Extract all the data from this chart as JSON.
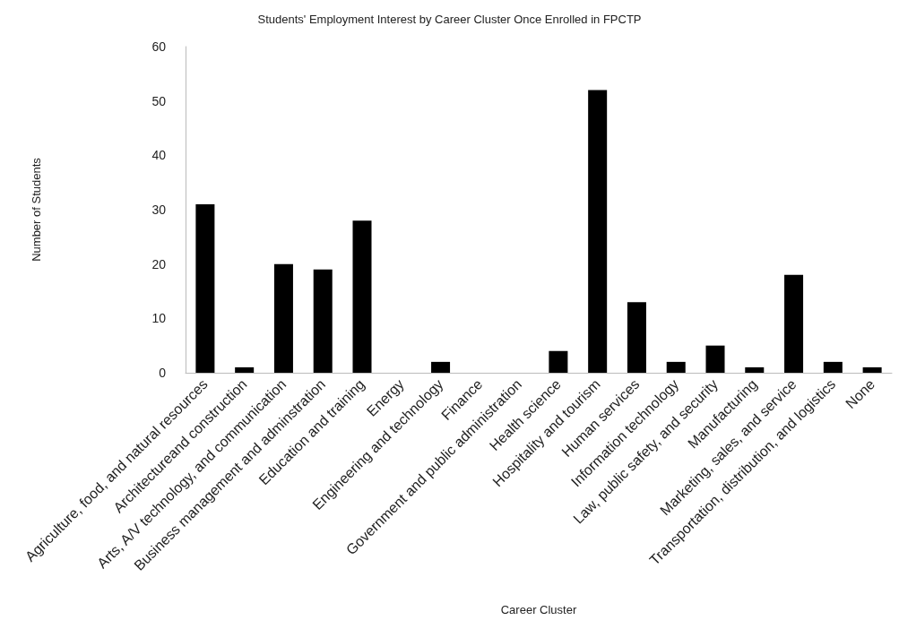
{
  "chart_data": {
    "type": "bar",
    "title": "Students' Employment Interest by Career Cluster Once Enrolled in FPCTP",
    "xlabel": "Career Cluster",
    "ylabel": "Number of Students",
    "categories": [
      "Agriculture, food, and natural resources",
      "Architectureand construction",
      "Arts, A/V technology, and communication",
      "Business management and adminstration",
      "Education and training",
      "Energy",
      "Engineering and technology",
      "Finance",
      "Government and public administration",
      "Health science",
      "Hospitality and tourism",
      "Human services",
      "Information technology",
      "Law, public safety, and security",
      "Manufacturing",
      "Marketing, sales, and service",
      "Transportation, distribution, and logistics",
      "None"
    ],
    "values": [
      31,
      1,
      20,
      19,
      28,
      0,
      2,
      0,
      0,
      4,
      52,
      13,
      2,
      5,
      1,
      18,
      2,
      1
    ],
    "color": "#000000",
    "ylim": [
      0,
      60
    ],
    "yticks": [
      0,
      10,
      20,
      30,
      40,
      50,
      60
    ],
    "grid": false
  }
}
